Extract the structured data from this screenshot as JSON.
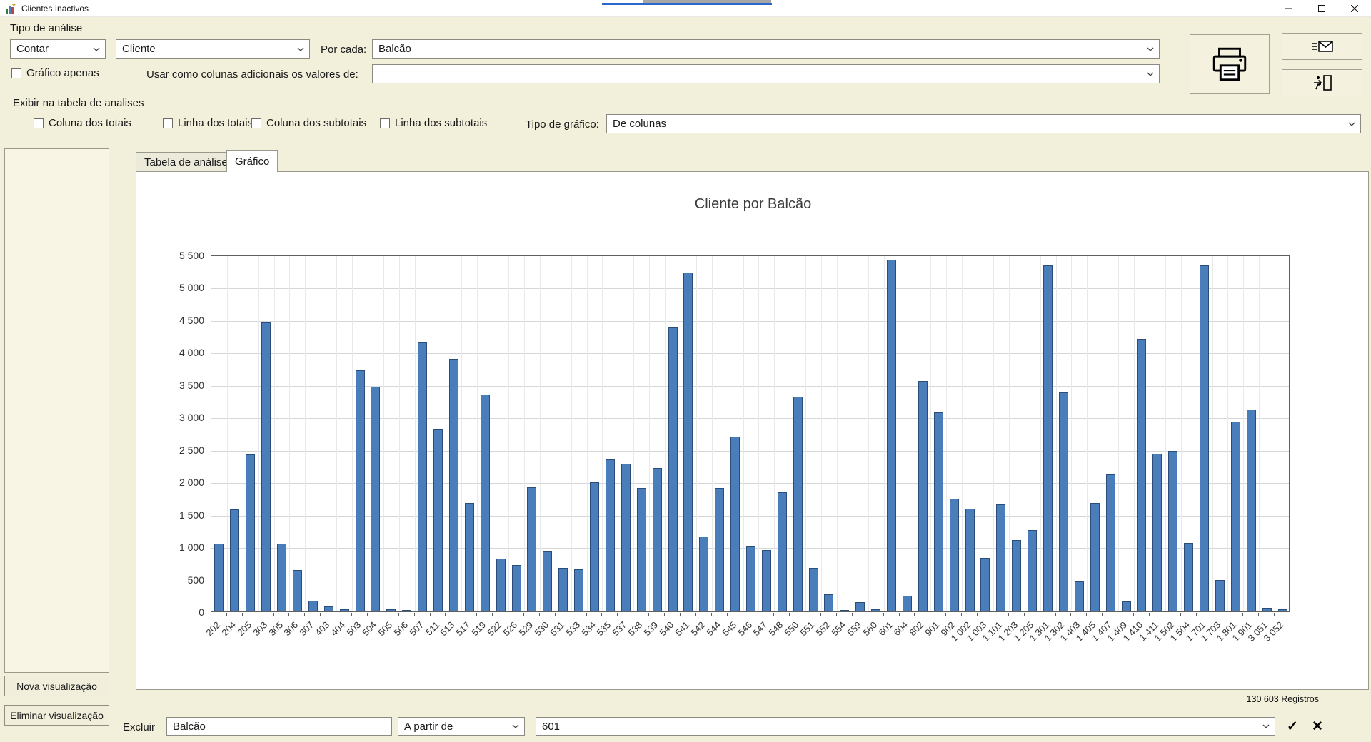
{
  "window": {
    "title": "Clientes Inactivos"
  },
  "toolbar": {
    "analysis_type_label": "Tipo de análise",
    "count_combo_value": "Contar",
    "entity_combo_value": "Cliente",
    "per_each_label": "Por cada:",
    "per_each_combo_value": "Balcão",
    "chart_only_checkbox_label": "Gráfico apenas",
    "additional_columns_label": "Usar como colunas adicionais os valores de:",
    "additional_columns_combo_value": ""
  },
  "display_options": {
    "group_label": "Exibir na tabela de analises",
    "checkboxes": [
      {
        "label": "Coluna dos totais",
        "checked": false
      },
      {
        "label": "Linha dos totais",
        "checked": false
      },
      {
        "label": "Coluna dos subtotais",
        "checked": false
      },
      {
        "label": "Linha dos subtotais",
        "checked": false
      }
    ],
    "chart_type_label": "Tipo de gráfico:",
    "chart_type_combo_value": "De colunas"
  },
  "sidebar": {
    "new_view_button": "Nova visualização",
    "delete_view_button": "Eliminar visualização"
  },
  "tabs": [
    {
      "label": "Tabela de análise",
      "active": false
    },
    {
      "label": "Gráfico",
      "active": true
    }
  ],
  "status": {
    "records": "130 603 Registros"
  },
  "filter_bar": {
    "exclude_label": "Excluir",
    "field_combo_value": "Balcão",
    "operator_combo_value": "A partir de",
    "value_combo_value": "601",
    "apply_icon": "✓",
    "clear_icon": "✕"
  },
  "chart_data": {
    "type": "bar",
    "title": "Cliente por Balcão",
    "categories": [
      "202",
      "204",
      "205",
      "303",
      "305",
      "306",
      "307",
      "403",
      "404",
      "503",
      "504",
      "505",
      "506",
      "507",
      "511",
      "513",
      "517",
      "519",
      "522",
      "526",
      "529",
      "530",
      "531",
      "533",
      "534",
      "535",
      "537",
      "538",
      "539",
      "540",
      "541",
      "542",
      "544",
      "545",
      "546",
      "547",
      "548",
      "550",
      "551",
      "552",
      "554",
      "559",
      "560",
      "601",
      "604",
      "802",
      "901",
      "902",
      "1 002",
      "1 003",
      "1 101",
      "1 203",
      "1 205",
      "1 301",
      "1 302",
      "1 403",
      "1 405",
      "1 407",
      "1 409",
      "1 410",
      "1 411",
      "1 502",
      "1 504",
      "1 701",
      "1 703",
      "1 801",
      "1 901",
      "3 051",
      "3 052"
    ],
    "values": [
      1050,
      1570,
      2420,
      4450,
      1050,
      640,
      160,
      80,
      30,
      3720,
      3470,
      30,
      10,
      4150,
      2820,
      3890,
      1670,
      3340,
      810,
      710,
      1910,
      940,
      670,
      650,
      1990,
      2340,
      2280,
      1900,
      2210,
      4380,
      5230,
      1150,
      1900,
      2700,
      1010,
      950,
      1840,
      3310,
      670,
      260,
      20,
      140,
      30,
      5420,
      240,
      3550,
      3070,
      1740,
      1580,
      820,
      1650,
      1100,
      1250,
      5340,
      3380,
      460,
      1670,
      2110,
      150,
      4200,
      2430,
      2470,
      1060,
      5330,
      480,
      2930,
      3110,
      50,
      30
    ],
    "xlabel": "",
    "ylabel": "",
    "ylim": [
      0,
      5500
    ],
    "y_step": 500,
    "y_tick_labels": [
      "0",
      "500",
      "1 000",
      "1 500",
      "2 000",
      "2 500",
      "3 000",
      "3 500",
      "4 000",
      "4 500",
      "5 000",
      "5 500"
    ],
    "grid": true,
    "legend_position": "none",
    "bar_color": "#4a7ebb",
    "bar_border_color": "#2b4d79"
  }
}
